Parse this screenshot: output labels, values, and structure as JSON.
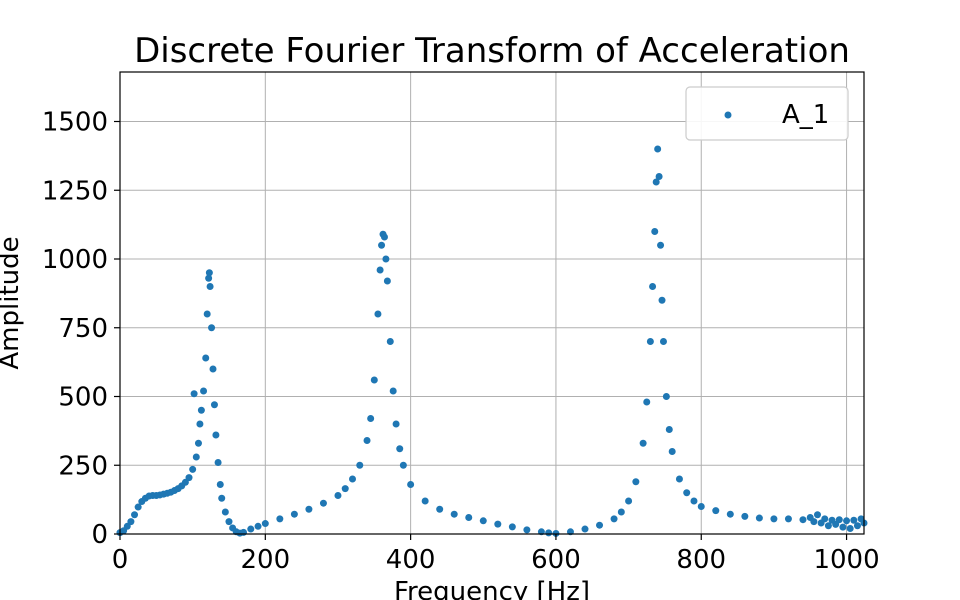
{
  "chart_data": {
    "type": "scatter",
    "title": "Discrete Fourier Transform of Acceleration",
    "xlabel": "Frequency [Hz]",
    "ylabel": "Amplitude",
    "xlim": [
      0,
      1024
    ],
    "ylim": [
      0,
      1680
    ],
    "x_ticks": [
      0,
      200,
      400,
      600,
      800,
      1000
    ],
    "y_ticks": [
      0,
      250,
      500,
      750,
      1000,
      1250,
      1500
    ],
    "grid": true,
    "legend": "top-right",
    "series": [
      {
        "name": "A_1",
        "color": "#1f77b4",
        "points": [
          [
            0,
            5
          ],
          [
            5,
            12
          ],
          [
            10,
            28
          ],
          [
            15,
            45
          ],
          [
            20,
            70
          ],
          [
            25,
            98
          ],
          [
            30,
            118
          ],
          [
            35,
            130
          ],
          [
            40,
            138
          ],
          [
            45,
            140
          ],
          [
            50,
            140
          ],
          [
            55,
            142
          ],
          [
            60,
            145
          ],
          [
            65,
            148
          ],
          [
            70,
            152
          ],
          [
            75,
            158
          ],
          [
            80,
            165
          ],
          [
            85,
            175
          ],
          [
            90,
            188
          ],
          [
            95,
            205
          ],
          [
            100,
            235
          ],
          [
            102,
            510
          ],
          [
            105,
            280
          ],
          [
            108,
            330
          ],
          [
            110,
            400
          ],
          [
            112,
            450
          ],
          [
            115,
            520
          ],
          [
            118,
            640
          ],
          [
            120,
            800
          ],
          [
            122,
            930
          ],
          [
            123,
            950
          ],
          [
            124,
            900
          ],
          [
            126,
            750
          ],
          [
            128,
            600
          ],
          [
            130,
            470
          ],
          [
            132,
            360
          ],
          [
            135,
            260
          ],
          [
            138,
            180
          ],
          [
            140,
            130
          ],
          [
            145,
            80
          ],
          [
            150,
            45
          ],
          [
            155,
            22
          ],
          [
            160,
            8
          ],
          [
            165,
            3
          ],
          [
            170,
            6
          ],
          [
            180,
            18
          ],
          [
            190,
            28
          ],
          [
            200,
            38
          ],
          [
            220,
            55
          ],
          [
            240,
            72
          ],
          [
            260,
            90
          ],
          [
            280,
            112
          ],
          [
            300,
            140
          ],
          [
            310,
            165
          ],
          [
            320,
            200
          ],
          [
            330,
            250
          ],
          [
            340,
            340
          ],
          [
            345,
            420
          ],
          [
            350,
            560
          ],
          [
            355,
            800
          ],
          [
            358,
            960
          ],
          [
            360,
            1050
          ],
          [
            362,
            1090
          ],
          [
            364,
            1080
          ],
          [
            366,
            1000
          ],
          [
            368,
            920
          ],
          [
            372,
            700
          ],
          [
            376,
            520
          ],
          [
            380,
            400
          ],
          [
            385,
            310
          ],
          [
            390,
            250
          ],
          [
            400,
            180
          ],
          [
            420,
            120
          ],
          [
            440,
            90
          ],
          [
            460,
            72
          ],
          [
            480,
            60
          ],
          [
            500,
            48
          ],
          [
            520,
            36
          ],
          [
            540,
            26
          ],
          [
            560,
            15
          ],
          [
            580,
            8
          ],
          [
            590,
            4
          ],
          [
            600,
            2
          ],
          [
            620,
            8
          ],
          [
            640,
            18
          ],
          [
            660,
            32
          ],
          [
            680,
            55
          ],
          [
            690,
            80
          ],
          [
            700,
            120
          ],
          [
            710,
            190
          ],
          [
            720,
            330
          ],
          [
            725,
            480
          ],
          [
            730,
            700
          ],
          [
            733,
            900
          ],
          [
            736,
            1100
          ],
          [
            738,
            1280
          ],
          [
            740,
            1400
          ],
          [
            742,
            1300
          ],
          [
            744,
            1050
          ],
          [
            746,
            850
          ],
          [
            748,
            700
          ],
          [
            752,
            500
          ],
          [
            756,
            380
          ],
          [
            760,
            300
          ],
          [
            770,
            200
          ],
          [
            780,
            150
          ],
          [
            790,
            120
          ],
          [
            800,
            100
          ],
          [
            820,
            85
          ],
          [
            840,
            72
          ],
          [
            860,
            64
          ],
          [
            880,
            58
          ],
          [
            900,
            55
          ],
          [
            920,
            55
          ],
          [
            940,
            52
          ],
          [
            950,
            60
          ],
          [
            955,
            45
          ],
          [
            960,
            70
          ],
          [
            965,
            40
          ],
          [
            970,
            55
          ],
          [
            975,
            30
          ],
          [
            980,
            50
          ],
          [
            985,
            35
          ],
          [
            990,
            52
          ],
          [
            995,
            25
          ],
          [
            1000,
            48
          ],
          [
            1005,
            20
          ],
          [
            1010,
            50
          ],
          [
            1015,
            30
          ],
          [
            1020,
            55
          ],
          [
            1024,
            40
          ]
        ]
      }
    ]
  }
}
